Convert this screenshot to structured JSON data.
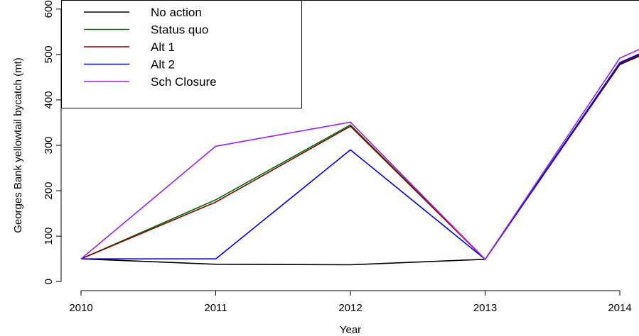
{
  "chart_data": {
    "type": "line",
    "title": "",
    "xlabel": "Year",
    "ylabel": "Georges Bank yellowtail bycatch (mt)",
    "x": [
      2010,
      2011,
      2012,
      2013,
      2014
    ],
    "xlim": [
      2010,
      2014.15
    ],
    "ylim": [
      -20,
      620
    ],
    "xticks": [
      2010,
      2011,
      2012,
      2013,
      2014
    ],
    "yticks": [
      0,
      100,
      200,
      300,
      400,
      500,
      600
    ],
    "grid": false,
    "legend_position": "top-left",
    "series": [
      {
        "name": "No action",
        "color": "#000000",
        "values": [
          50,
          38,
          37,
          49,
          478
        ],
        "end_value": 497
      },
      {
        "name": "Status quo",
        "color": "#007000",
        "values": [
          50,
          180,
          345,
          49,
          481
        ],
        "end_value": 500
      },
      {
        "name": "Alt 1",
        "color": "#8b0000",
        "values": [
          50,
          175,
          342,
          49,
          480
        ],
        "end_value": 499
      },
      {
        "name": "Alt 2",
        "color": "#0000ee",
        "values": [
          50,
          50,
          290,
          49,
          482
        ],
        "end_value": 502
      },
      {
        "name": "Sch Closure",
        "color": "#a020f0",
        "values": [
          50,
          298,
          351,
          49,
          492
        ],
        "end_value": 512
      }
    ]
  }
}
